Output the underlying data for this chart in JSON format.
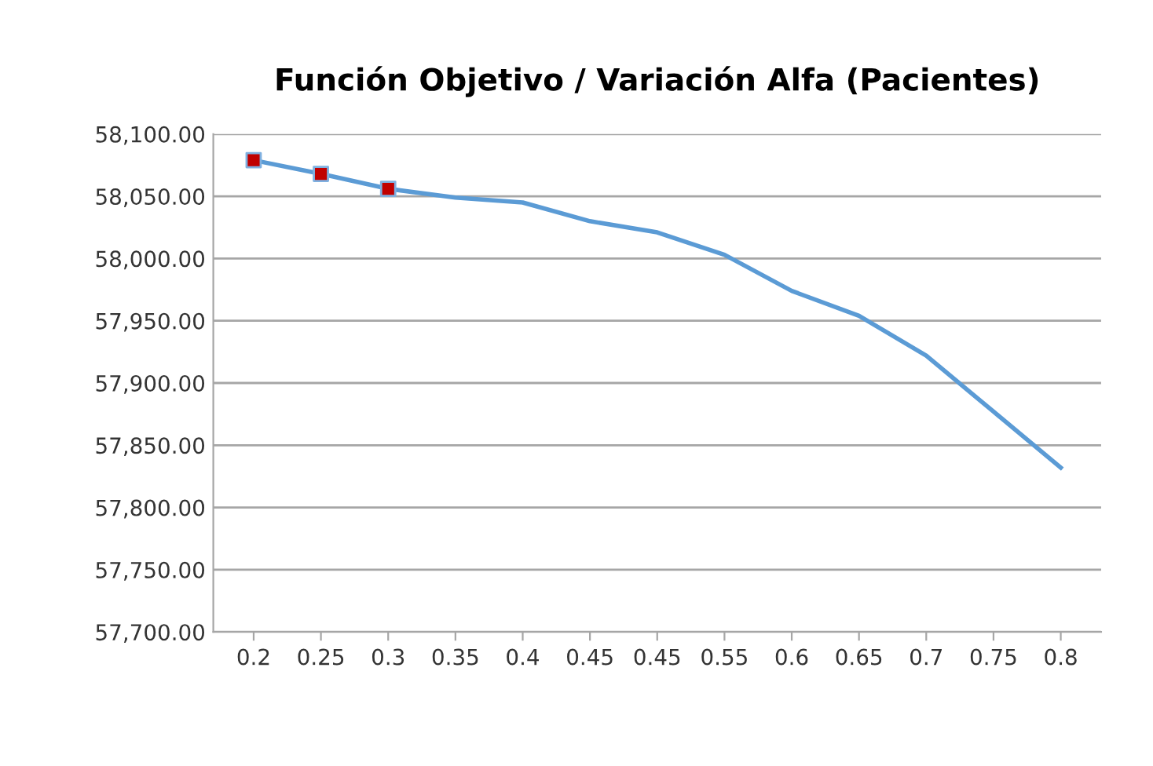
{
  "chart_data": {
    "type": "line",
    "title": "Función Objetivo / Variación Alfa (Pacientes)",
    "categories": [
      "0.2",
      "0.25",
      "0.3",
      "0.35",
      "0.4",
      "0.45",
      "0.45",
      "0.55",
      "0.6",
      "0.65",
      "0.7",
      "0.75",
      "0.8"
    ],
    "series": [
      {
        "color": "#5b9bd5",
        "marker": "none",
        "values": [
          58079,
          58068,
          58056,
          58049,
          58045,
          58030,
          58021,
          58003,
          57974,
          57954,
          57922,
          57877,
          57832
        ]
      },
      {
        "type": "scatter",
        "color": "#c00000",
        "marker": "square",
        "x": [
          "0.2",
          "0.25",
          "0.3"
        ],
        "values": [
          58079,
          58068,
          58056
        ]
      }
    ],
    "ylim": [
      57700,
      58100
    ],
    "yticks": [
      {
        "value": 57700,
        "label": "57,700.00"
      },
      {
        "value": 57750,
        "label": "57,750.00"
      },
      {
        "value": 57800,
        "label": "57,800.00"
      },
      {
        "value": 57850,
        "label": "57,850.00"
      },
      {
        "value": 57900,
        "label": "57,900.00"
      },
      {
        "value": 57950,
        "label": "57,950.00"
      },
      {
        "value": 58000,
        "label": "58,000.00"
      },
      {
        "value": 58050,
        "label": "58,050.00"
      },
      {
        "value": 58100,
        "label": "58,100.00"
      }
    ],
    "grid": "y"
  }
}
